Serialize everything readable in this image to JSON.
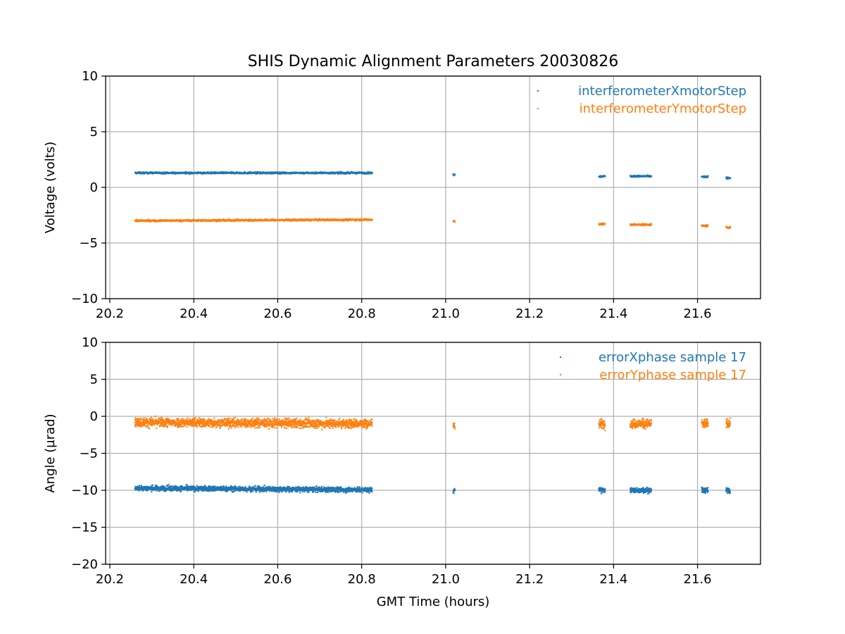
{
  "figure": {
    "title": "SHIS Dynamic Alignment Parameters 20030826",
    "xlabel": "GMT Time (hours)"
  },
  "colors": {
    "series_a": "#1f77b4",
    "series_b": "#ff7f0e",
    "grid": "#b0b0b0",
    "axes": "#000000"
  },
  "chart_data": [
    {
      "type": "scatter",
      "ylabel": "Voltage (volts)",
      "xlim": [
        20.19,
        21.75
      ],
      "ylim": [
        -10,
        10
      ],
      "xticks": [
        20.2,
        20.4,
        20.6,
        20.8,
        21.0,
        21.2,
        21.4,
        21.6
      ],
      "xtick_labels": [
        "20.2",
        "20.4",
        "20.6",
        "20.8",
        "21.0",
        "21.2",
        "21.4",
        "21.6"
      ],
      "yticks": [
        10,
        5,
        0,
        -5,
        -10
      ],
      "ytick_labels": [
        "10",
        "5",
        "0",
        "−5",
        "−10"
      ],
      "grid": true,
      "legend_placement": "top-right",
      "series": [
        {
          "name": "interferometerXmotorStep",
          "color": "#1f77b4",
          "noise": 0.08,
          "segments": [
            {
              "x_start": 20.26,
              "x_end": 20.825,
              "y_start": 1.3,
              "y_end": 1.3
            },
            {
              "x_start": 21.018,
              "x_end": 21.022,
              "y_start": 1.15,
              "y_end": 1.15
            },
            {
              "x_start": 21.365,
              "x_end": 21.38,
              "y_start": 1.0,
              "y_end": 1.0
            },
            {
              "x_start": 21.44,
              "x_end": 21.49,
              "y_start": 1.0,
              "y_end": 1.0
            },
            {
              "x_start": 21.61,
              "x_end": 21.625,
              "y_start": 0.95,
              "y_end": 0.95
            },
            {
              "x_start": 21.668,
              "x_end": 21.678,
              "y_start": 0.85,
              "y_end": 0.85
            }
          ]
        },
        {
          "name": "interferometerYmotorStep",
          "color": "#ff7f0e",
          "noise": 0.08,
          "segments": [
            {
              "x_start": 20.26,
              "x_end": 20.825,
              "y_start": -3.0,
              "y_end": -2.9
            },
            {
              "x_start": 21.018,
              "x_end": 21.022,
              "y_start": -3.05,
              "y_end": -3.05
            },
            {
              "x_start": 21.365,
              "x_end": 21.38,
              "y_start": -3.3,
              "y_end": -3.3
            },
            {
              "x_start": 21.44,
              "x_end": 21.49,
              "y_start": -3.35,
              "y_end": -3.35
            },
            {
              "x_start": 21.61,
              "x_end": 21.625,
              "y_start": -3.45,
              "y_end": -3.45
            },
            {
              "x_start": 21.668,
              "x_end": 21.678,
              "y_start": -3.6,
              "y_end": -3.6
            }
          ]
        }
      ]
    },
    {
      "type": "scatter",
      "ylabel": "Angle (µrad)",
      "xlim": [
        20.19,
        21.75
      ],
      "ylim": [
        -20,
        10
      ],
      "xticks": [
        20.2,
        20.4,
        20.6,
        20.8,
        21.0,
        21.2,
        21.4,
        21.6
      ],
      "xtick_labels": [
        "20.2",
        "20.4",
        "20.6",
        "20.8",
        "21.0",
        "21.2",
        "21.4",
        "21.6"
      ],
      "yticks": [
        10,
        5,
        0,
        -5,
        -10,
        -15,
        -20
      ],
      "ytick_labels": [
        "10",
        "5",
        "0",
        "−5",
        "−10",
        "−15",
        "−20"
      ],
      "grid": true,
      "legend_placement": "top-right",
      "series": [
        {
          "name": "errorXphase sample 17",
          "color": "#1f77b4",
          "noise": 0.35,
          "segments": [
            {
              "x_start": 20.26,
              "x_end": 20.825,
              "y_start": -9.7,
              "y_end": -9.95
            },
            {
              "x_start": 21.018,
              "x_end": 21.022,
              "y_start": -10.0,
              "y_end": -10.0
            },
            {
              "x_start": 21.365,
              "x_end": 21.38,
              "y_start": -10.0,
              "y_end": -10.0
            },
            {
              "x_start": 21.44,
              "x_end": 21.49,
              "y_start": -10.0,
              "y_end": -10.0
            },
            {
              "x_start": 21.61,
              "x_end": 21.625,
              "y_start": -10.0,
              "y_end": -10.0
            },
            {
              "x_start": 21.668,
              "x_end": 21.678,
              "y_start": -10.0,
              "y_end": -10.0
            }
          ]
        },
        {
          "name": "errorYphase sample 17",
          "color": "#ff7f0e",
          "noise": 0.6,
          "segments": [
            {
              "x_start": 20.26,
              "x_end": 20.825,
              "y_start": -0.8,
              "y_end": -1.0
            },
            {
              "x_start": 21.018,
              "x_end": 21.022,
              "y_start": -1.1,
              "y_end": -1.1
            },
            {
              "x_start": 21.365,
              "x_end": 21.38,
              "y_start": -1.0,
              "y_end": -1.0
            },
            {
              "x_start": 21.44,
              "x_end": 21.49,
              "y_start": -1.0,
              "y_end": -1.0
            },
            {
              "x_start": 21.61,
              "x_end": 21.625,
              "y_start": -1.0,
              "y_end": -1.0
            },
            {
              "x_start": 21.668,
              "x_end": 21.678,
              "y_start": -1.0,
              "y_end": -1.0
            }
          ]
        }
      ]
    }
  ]
}
